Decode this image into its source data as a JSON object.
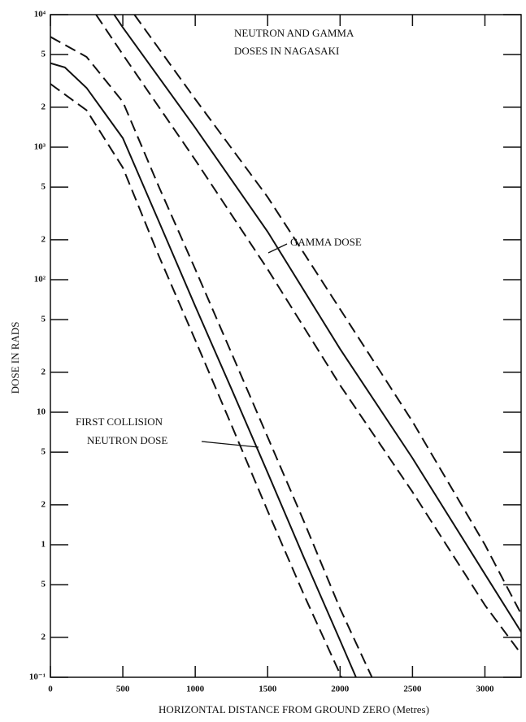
{
  "chart_data": {
    "type": "line",
    "title": [
      "NEUTRON AND GAMMA",
      "DOSES IN NAGASAKI"
    ],
    "x_label": "HORIZONTAL DISTANCE FROM GROUND ZERO (Metres)",
    "y_label": "DOSE IN RADS",
    "annotations": [
      "GAMMA DOSE",
      "FIRST COLLISION",
      "NEUTRON DOSE"
    ],
    "log_y": true,
    "xlim": [
      0,
      3250
    ],
    "xticks": [
      0,
      500,
      1000,
      1500,
      2000,
      2500,
      3000
    ],
    "ylim": [
      0.1,
      10000
    ],
    "yticks": [
      {
        "value": 10000,
        "label": "10⁴"
      },
      {
        "value": 5000,
        "label": "5"
      },
      {
        "value": 2000,
        "label": "2"
      },
      {
        "value": 1000,
        "label": "10³"
      },
      {
        "value": 500,
        "label": "5"
      },
      {
        "value": 200,
        "label": "2"
      },
      {
        "value": 100,
        "label": "10²"
      },
      {
        "value": 50,
        "label": "5"
      },
      {
        "value": 20,
        "label": "2"
      },
      10,
      {
        "value": 5,
        "label": "5"
      },
      {
        "value": 2,
        "label": "2"
      },
      1,
      {
        "value": 0.5,
        "label": "5"
      },
      {
        "value": 0.2,
        "label": "2"
      },
      {
        "value": 0.1,
        "label": "10⁻¹"
      }
    ],
    "series": [
      {
        "color": "#111111",
        "dashed": true,
        "x": [
          0,
          250,
          500,
          750,
          1000,
          1250,
          1500,
          1750,
          2000,
          2220
        ],
        "values": [
          6800,
          4800,
          2200,
          500,
          120,
          28,
          6.5,
          1.5,
          0.33,
          0.1
        ]
      },
      {
        "color": "#111111",
        "dashed": false,
        "x": [
          0,
          100,
          250,
          500,
          750,
          1000,
          1250,
          1500,
          1750,
          2000,
          2110
        ],
        "values": [
          4300,
          4000,
          2800,
          1170,
          273,
          63,
          15,
          3.5,
          0.8,
          0.19,
          0.1
        ]
      },
      {
        "color": "#111111",
        "dashed": true,
        "x": [
          0,
          250,
          500,
          750,
          1000,
          1250,
          1500,
          1750,
          2010
        ],
        "values": [
          3000,
          1900,
          700,
          150,
          35,
          8,
          1.8,
          0.42,
          0.1
        ]
      },
      {
        "color": "#111111",
        "dashed": true,
        "x": [
          580,
          1000,
          1500,
          2000,
          2500,
          3000,
          3250
        ],
        "values": [
          10000,
          2300,
          420,
          60,
          8.5,
          1,
          0.3
        ]
      },
      {
        "color": "#111111",
        "dashed": false,
        "x": [
          440,
          500,
          1000,
          1500,
          2000,
          2500,
          3000,
          3250
        ],
        "values": [
          10000,
          8000,
          1400,
          230,
          30,
          4.5,
          0.6,
          0.22
        ]
      },
      {
        "color": "#111111",
        "dashed": true,
        "x": [
          315,
          500,
          1000,
          1500,
          2000,
          2500,
          3000,
          3250
        ],
        "values": [
          10000,
          5000,
          800,
          120,
          16,
          2.5,
          0.35,
          0.15
        ]
      }
    ]
  }
}
